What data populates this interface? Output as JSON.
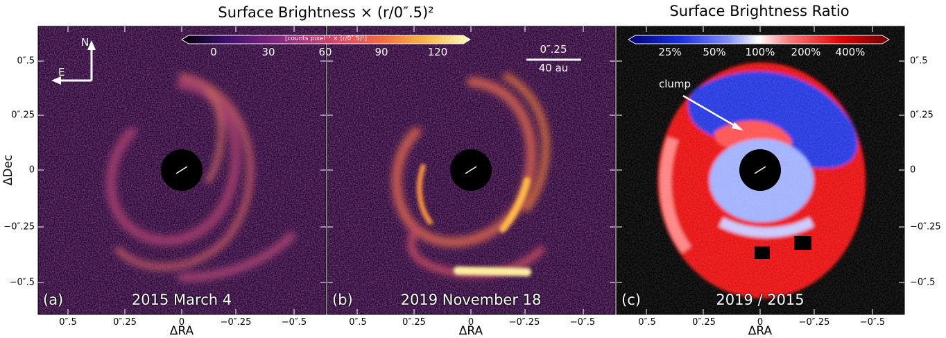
{
  "titles": {
    "left": "Surface Brightness × (r/0″.5)²",
    "right": "Surface Brightness Ratio"
  },
  "axes": {
    "xlabel": "ΔRA",
    "ylabel": "ΔDec",
    "x_ticks": [
      "0″.5",
      "0″.25",
      "0",
      "−0″.25",
      "−0″.5"
    ],
    "y_ticks": [
      "0″.5",
      "0″.25",
      "0",
      "−0″.25",
      "−0″.5"
    ]
  },
  "panels": [
    {
      "tag": "(a)",
      "caption": "2015 March 4"
    },
    {
      "tag": "(b)",
      "caption": "2019 November 18"
    },
    {
      "tag": "(c)",
      "caption": "2019 / 2015"
    }
  ],
  "colorbar_brightness": {
    "ticks": [
      "0",
      "30",
      "60",
      "90",
      "120"
    ],
    "label": "[counts pixel⁻¹ × (r/0″.5)²]",
    "colors": [
      "#000000",
      "#3b0f6f",
      "#8c2981",
      "#de4968",
      "#f66e3c",
      "#fcb845",
      "#fcfdbf"
    ]
  },
  "colorbar_ratio": {
    "ticks": [
      "25%",
      "50%",
      "100%",
      "200%",
      "400%"
    ],
    "colors": [
      "#00007a",
      "#1a2fe0",
      "#7f8cff",
      "#ffffff",
      "#ff7777",
      "#e00000",
      "#6a0000"
    ]
  },
  "compass": {
    "north": "N",
    "east": "E"
  },
  "scalebar": {
    "angular": "0″.25",
    "physical": "40 au"
  },
  "annotation": {
    "clump": "clump"
  }
}
